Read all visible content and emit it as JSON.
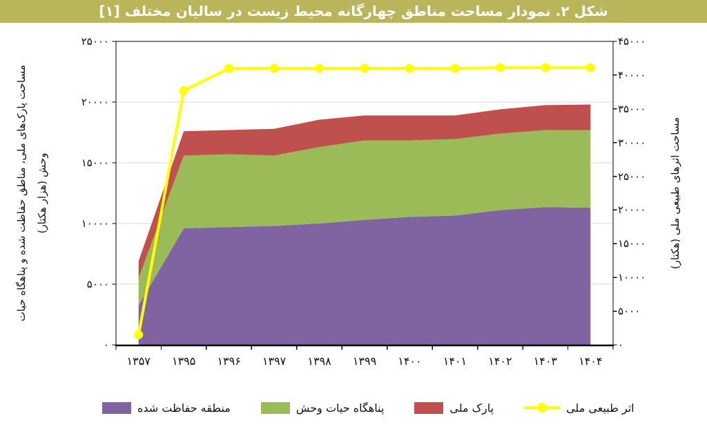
{
  "figure": {
    "title": "شکل ۲. نمودار مساحت مناطق چهارگانه محیط زیست در سالیان مختلف [۱]",
    "title_bg": "#b9b55a",
    "title_color": "#ffffff"
  },
  "chart_data": {
    "type": "area",
    "stacked": true,
    "rtl_labels": true,
    "grid": true,
    "legend_position": "bottom",
    "categories": [
      "۱۳۵۷",
      "۱۳۹۵",
      "۱۳۹۶",
      "۱۳۹۷",
      "۱۳۹۸",
      "۱۳۹۹",
      "۱۴۰۰",
      "۱۴۰۱",
      "۱۴۰۲",
      "۱۴۰۳",
      "۱۴۰۴"
    ],
    "categories_latin": [
      1357,
      1395,
      1396,
      1397,
      1398,
      1399,
      1400,
      1401,
      1402,
      1403,
      1404
    ],
    "series": [
      {
        "name": "منطقه حفاظت شده",
        "type": "area",
        "axis": "left",
        "color": "#8064A2",
        "values": [
          3250,
          9600,
          9700,
          9800,
          10000,
          10300,
          10550,
          10650,
          11100,
          11350,
          11300
        ]
      },
      {
        "name": "پناهگاه حیات وحش",
        "type": "area",
        "axis": "left",
        "color": "#9BBB59",
        "values": [
          2250,
          6000,
          6000,
          5800,
          6300,
          6550,
          6300,
          6300,
          6300,
          6350,
          6400
        ]
      },
      {
        "name": "پارک ملی",
        "type": "area",
        "axis": "left",
        "color": "#C0504D",
        "values": [
          1400,
          2000,
          2000,
          2200,
          2250,
          2050,
          2050,
          1950,
          2000,
          2050,
          2100
        ]
      },
      {
        "name": "اثر طبیعی ملی",
        "type": "line",
        "axis": "right",
        "color": "#FFFF00",
        "values": [
          1500,
          37700,
          41000,
          41000,
          41000,
          41000,
          41000,
          41000,
          41100,
          41100,
          41100
        ]
      }
    ],
    "left_axis": {
      "title_line1": "مساحت پارک‌های ملی، مناطق حفاظت شده و پناهگاه حیات",
      "title_line2": "وحش (هزار هکتار)",
      "min": 0,
      "max": 25000,
      "step": 5000,
      "tick_values": [
        0,
        5000,
        10000,
        15000,
        20000,
        25000
      ],
      "tick_labels": [
        "۰",
        "۵۰۰۰",
        "۱۰۰۰۰",
        "۱۵۰۰۰",
        "۲۰۰۰۰",
        "۲۵۰۰۰"
      ]
    },
    "right_axis": {
      "title": "مساحت اثرهای طبیعی ملی (هکتار)",
      "min": 0,
      "max": 45000,
      "step": 5000,
      "tick_values": [
        0,
        5000,
        10000,
        15000,
        20000,
        25000,
        30000,
        35000,
        40000,
        45000
      ],
      "tick_labels": [
        "۰",
        "۵۰۰۰",
        "۱۰۰۰۰",
        "۱۵۰۰۰",
        "۲۰۰۰۰",
        "۲۵۰۰۰",
        "۳۰۰۰۰",
        "۳۵۰۰۰",
        "۴۰۰۰۰",
        "۴۵۰۰۰"
      ]
    }
  },
  "legend": {
    "items": [
      {
        "label": "منطقه حفاظت شده",
        "color": "#8064A2",
        "marker": "rect"
      },
      {
        "label": "پناهگاه حیات وحش",
        "color": "#9BBB59",
        "marker": "rect"
      },
      {
        "label": "پارک ملی",
        "color": "#C0504D",
        "marker": "rect"
      },
      {
        "label": "اثر طبیعی ملی",
        "color": "#FFFF00",
        "marker": "line-dot"
      }
    ]
  },
  "colors": {
    "grid": "#d9d9d9",
    "axis": "#000000",
    "plot_background": "#ffffff"
  }
}
